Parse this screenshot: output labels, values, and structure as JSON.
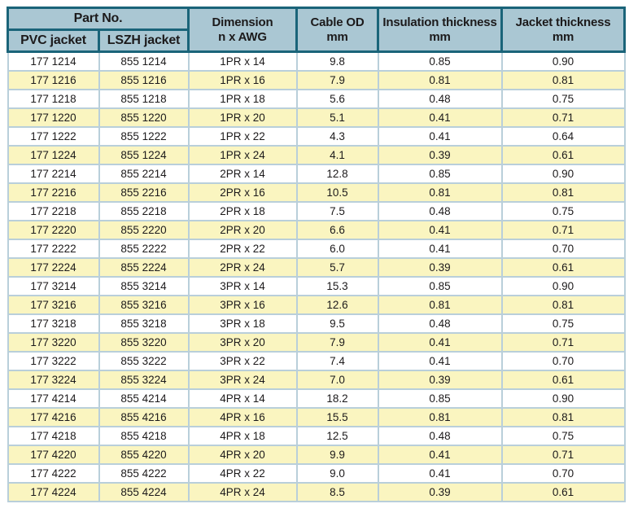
{
  "colors": {
    "header_bg": "#aac7d3",
    "teal": "#1a6479",
    "grid": "#b9cfda",
    "row_alt": "#faf5c0",
    "row_main": "#ffffff",
    "text": "#1c1a1b"
  },
  "table": {
    "header": {
      "part_no": "Part No.",
      "pvc_jacket": "PVC jacket",
      "lszh_jacket": "LSZH jacket",
      "dimension_line1": "Dimension",
      "dimension_line2": "n x AWG",
      "cable_od_line1": "Cable OD",
      "cable_od_line2": "mm",
      "insulation_line1": "Insulation thickness",
      "insulation_line2": "mm",
      "jacket_line1": "Jacket thickness",
      "jacket_line2": "mm"
    },
    "columns": [
      "pvc_part_no",
      "lszh_part_no",
      "dimension",
      "cable_od_mm",
      "insulation_thickness_mm",
      "jacket_thickness_mm"
    ],
    "rows": [
      [
        "177 1214",
        "855 1214",
        "1PR x 14",
        "9.8",
        "0.85",
        "0.90"
      ],
      [
        "177 1216",
        "855 1216",
        "1PR x 16",
        "7.9",
        "0.81",
        "0.81"
      ],
      [
        "177 1218",
        "855 1218",
        "1PR x 18",
        "5.6",
        "0.48",
        "0.75"
      ],
      [
        "177 1220",
        "855 1220",
        "1PR x 20",
        "5.1",
        "0.41",
        "0.71"
      ],
      [
        "177 1222",
        "855 1222",
        "1PR x 22",
        "4.3",
        "0.41",
        "0.64"
      ],
      [
        "177 1224",
        "855 1224",
        "1PR x 24",
        "4.1",
        "0.39",
        "0.61"
      ],
      [
        "177 2214",
        "855 2214",
        "2PR x 14",
        "12.8",
        "0.85",
        "0.90"
      ],
      [
        "177 2216",
        "855 2216",
        "2PR x 16",
        "10.5",
        "0.81",
        "0.81"
      ],
      [
        "177 2218",
        "855 2218",
        "2PR x 18",
        "7.5",
        "0.48",
        "0.75"
      ],
      [
        "177 2220",
        "855 2220",
        "2PR x 20",
        "6.6",
        "0.41",
        "0.71"
      ],
      [
        "177 2222",
        "855 2222",
        "2PR x 22",
        "6.0",
        "0.41",
        "0.70"
      ],
      [
        "177 2224",
        "855 2224",
        "2PR x 24",
        "5.7",
        "0.39",
        "0.61"
      ],
      [
        "177 3214",
        "855 3214",
        "3PR x 14",
        "15.3",
        "0.85",
        "0.90"
      ],
      [
        "177 3216",
        "855 3216",
        "3PR x 16",
        "12.6",
        "0.81",
        "0.81"
      ],
      [
        "177 3218",
        "855 3218",
        "3PR x 18",
        "9.5",
        "0.48",
        "0.75"
      ],
      [
        "177 3220",
        "855 3220",
        "3PR x 20",
        "7.9",
        "0.41",
        "0.71"
      ],
      [
        "177 3222",
        "855 3222",
        "3PR x 22",
        "7.4",
        "0.41",
        "0.70"
      ],
      [
        "177 3224",
        "855 3224",
        "3PR x 24",
        "7.0",
        "0.39",
        "0.61"
      ],
      [
        "177 4214",
        "855 4214",
        "4PR x 14",
        "18.2",
        "0.85",
        "0.90"
      ],
      [
        "177 4216",
        "855 4216",
        "4PR x 16",
        "15.5",
        "0.81",
        "0.81"
      ],
      [
        "177 4218",
        "855 4218",
        "4PR x 18",
        "12.5",
        "0.48",
        "0.75"
      ],
      [
        "177 4220",
        "855 4220",
        "4PR x 20",
        "9.9",
        "0.41",
        "0.71"
      ],
      [
        "177 4222",
        "855 4222",
        "4PR x 22",
        "9.0",
        "0.41",
        "0.70"
      ],
      [
        "177 4224",
        "855 4224",
        "4PR x 24",
        "8.5",
        "0.39",
        "0.61"
      ]
    ]
  }
}
